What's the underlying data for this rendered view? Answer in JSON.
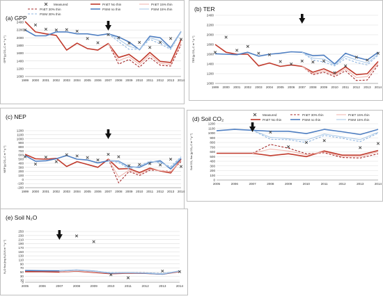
{
  "panels_legend": {
    "measured": "Measured",
    "pnet_no": "PnET No thin",
    "pnet_15": "PnET 15% thin",
    "pnet_30": "PnET 30% thin",
    "psim_no": "PSIM no thin",
    "psim_15": "PSIM 15% thin",
    "psim_30": "PSIM 30% thin",
    "pnet_no_alt": "PnET No thin",
    "psim_no_alt": "PSIM no thin",
    "pnet_30_alt": "PnET 30% thin",
    "pnet_15_alt": "PnET 15% thin",
    "psim_15_alt": "PSIM 15% thin"
  },
  "colors": {
    "measured": "#444444",
    "pnet_no": "#c0392b",
    "pnet_15": "#f0b8b0",
    "pnet_30": "#a52a2a",
    "psim_no": "#4f7fc2",
    "psim_15": "#aecbe8",
    "psim_30": "#8fb5e0",
    "arrow": "#111111"
  },
  "chart_data": [
    {
      "id": "gpp",
      "type": "line",
      "title": "(a) GPP",
      "ylabel": "GPP [g CO₂-C m⁻² y⁻¹]",
      "x": [
        1999,
        2000,
        2001,
        2002,
        2003,
        2004,
        2005,
        2006,
        2007,
        2008,
        2009,
        2010,
        2011,
        2012,
        2013,
        2014
      ],
      "xlim": [
        1999,
        2014
      ],
      "ylim": [
        1000,
        2400
      ],
      "yticks": [
        1000,
        1200,
        1400,
        1600,
        1800,
        2000,
        2200,
        2400
      ],
      "arrow_x": 2007,
      "measured": {
        "x": [
          1999,
          2000,
          2001,
          2002,
          2003,
          2004,
          2005,
          2006,
          2007,
          2008,
          2009,
          2010,
          2011,
          2012,
          2013,
          2014
        ],
        "y": [
          2200,
          2330,
          2220,
          2200,
          2210,
          2170,
          1980,
          1870,
          2080,
          2000,
          1860,
          1880,
          1750,
          1880,
          1980,
          1960
        ]
      },
      "series": [
        {
          "name": "pnet_no",
          "y": [
            2420,
            2150,
            2100,
            2060,
            1680,
            1860,
            1720,
            1680,
            1850,
            1490,
            1570,
            1370,
            1620,
            1390,
            1360,
            1950
          ]
        },
        {
          "name": "pnet_30",
          "y": [
            null,
            null,
            null,
            null,
            null,
            null,
            null,
            null,
            1850,
            1320,
            1440,
            1240,
            1490,
            1290,
            1270,
            1820
          ]
        },
        {
          "name": "pnet_15",
          "y": [
            null,
            null,
            null,
            null,
            null,
            null,
            null,
            null,
            1850,
            1410,
            1510,
            1310,
            1560,
            1340,
            1310,
            1880
          ]
        },
        {
          "name": "psim_no",
          "y": [
            2200,
            2050,
            2050,
            2150,
            2150,
            2100,
            2100,
            2060,
            2100,
            2020,
            1890,
            1690,
            2040,
            2000,
            1740,
            2160
          ]
        },
        {
          "name": "psim_30",
          "y": [
            null,
            null,
            null,
            null,
            null,
            null,
            null,
            null,
            2100,
            1900,
            1700,
            1700,
            1960,
            1840,
            1700,
            2140
          ]
        },
        {
          "name": "psim_15",
          "y": [
            null,
            null,
            null,
            null,
            null,
            null,
            null,
            null,
            2100,
            1960,
            1780,
            1700,
            2000,
            1920,
            1720,
            2150
          ]
        }
      ]
    },
    {
      "id": "ter",
      "type": "line",
      "title": "(b) TER",
      "ylabel": "TER [g CO₂-C m⁻² y⁻¹]",
      "x": [
        1999,
        2000,
        2001,
        2002,
        2003,
        2004,
        2005,
        2006,
        2007,
        2008,
        2009,
        2010,
        2011,
        2012,
        2013,
        2014
      ],
      "xlim": [
        1999,
        2014
      ],
      "ylim": [
        1000,
        2400
      ],
      "yticks": [
        1000,
        1200,
        1400,
        1600,
        1800,
        2000,
        2200,
        2400
      ],
      "arrow_x": 2007,
      "measured": {
        "x": [
          1999,
          2000,
          2001,
          2002,
          2003,
          2004,
          2005,
          2006,
          2007,
          2008,
          2009,
          2010,
          2011,
          2012,
          2013,
          2014
        ],
        "y": [
          1640,
          1950,
          1680,
          1760,
          1620,
          1590,
          1450,
          1400,
          1460,
          1440,
          1460,
          1220,
          1360,
          1540,
          1480,
          1620
        ]
      },
      "series": [
        {
          "name": "pnet_no",
          "y": [
            1800,
            1640,
            1600,
            1600,
            1360,
            1420,
            1350,
            1380,
            1350,
            1230,
            1300,
            1200,
            1340,
            1180,
            1200,
            1450
          ]
        },
        {
          "name": "pnet_30",
          "y": [
            null,
            null,
            null,
            null,
            null,
            null,
            null,
            null,
            1350,
            1180,
            1230,
            1140,
            1260,
            1060,
            1070,
            1380
          ]
        },
        {
          "name": "pnet_15",
          "y": [
            null,
            null,
            null,
            null,
            null,
            null,
            null,
            null,
            1350,
            1200,
            1260,
            1170,
            1300,
            1120,
            1140,
            1410
          ]
        },
        {
          "name": "psim_no",
          "y": [
            1610,
            1600,
            1590,
            1640,
            1560,
            1600,
            1620,
            1650,
            1640,
            1570,
            1580,
            1400,
            1620,
            1540,
            1480,
            1640
          ]
        },
        {
          "name": "psim_30",
          "y": [
            null,
            null,
            null,
            null,
            null,
            null,
            null,
            null,
            1640,
            1480,
            1440,
            1360,
            1510,
            1430,
            1380,
            1580
          ]
        },
        {
          "name": "psim_15",
          "y": [
            null,
            null,
            null,
            null,
            null,
            null,
            null,
            null,
            1640,
            1520,
            1500,
            1380,
            1560,
            1480,
            1420,
            1600
          ]
        }
      ]
    },
    {
      "id": "nep",
      "type": "line",
      "title": "(c) NEP",
      "ylabel": "NEP [g CO₂-C m⁻² y⁻¹]",
      "x": [
        1999,
        2000,
        2001,
        2002,
        2003,
        2004,
        2005,
        2006,
        2007,
        2008,
        2009,
        2010,
        2011,
        2012,
        2013,
        2014
      ],
      "xlim": [
        1999,
        2014
      ],
      "ylim": [
        -200,
        1200
      ],
      "yticks": [
        -200,
        -100,
        0,
        100,
        200,
        300,
        400,
        500,
        600,
        700,
        800,
        900,
        1000,
        1100,
        1200
      ],
      "arrow_x": 2007,
      "measured": {
        "x": [
          1999,
          2000,
          2001,
          2002,
          2003,
          2004,
          2005,
          2006,
          2007,
          2008,
          2009,
          2010,
          2011,
          2012,
          2013,
          2014
        ],
        "y": [
          560,
          380,
          550,
          440,
          610,
          580,
          540,
          480,
          620,
          560,
          340,
          370,
          390,
          360,
          500,
          320
        ]
      },
      "series": [
        {
          "name": "pnet_no",
          "y": [
            620,
            510,
            500,
            520,
            320,
            440,
            370,
            300,
            500,
            260,
            270,
            170,
            280,
            210,
            160,
            500
          ]
        },
        {
          "name": "pnet_30",
          "y": [
            null,
            null,
            null,
            null,
            null,
            null,
            null,
            null,
            500,
            -80,
            200,
            100,
            230,
            220,
            200,
            440
          ]
        },
        {
          "name": "pnet_15",
          "y": [
            null,
            null,
            null,
            null,
            null,
            null,
            null,
            null,
            500,
            60,
            230,
            140,
            250,
            220,
            190,
            470
          ]
        },
        {
          "name": "psim_no",
          "y": [
            590,
            450,
            460,
            510,
            590,
            500,
            480,
            410,
            460,
            450,
            310,
            300,
            420,
            460,
            260,
            520
          ]
        },
        {
          "name": "psim_30",
          "y": [
            null,
            null,
            null,
            null,
            null,
            null,
            null,
            null,
            460,
            420,
            260,
            340,
            450,
            410,
            320,
            560
          ]
        },
        {
          "name": "psim_15",
          "y": [
            null,
            null,
            null,
            null,
            null,
            null,
            null,
            null,
            460,
            440,
            290,
            320,
            440,
            430,
            290,
            540
          ]
        }
      ]
    },
    {
      "id": "co2",
      "type": "line",
      "title": "(d) Soil CO₂",
      "ylabel": "Soil CO₂ flux [g CO₂-C m⁻² y⁻¹]",
      "x": [
        2005,
        2006,
        2007,
        2008,
        2009,
        2010,
        2011,
        2012,
        2013,
        2014
      ],
      "xlim": [
        2005,
        2014
      ],
      "ylim": [
        0,
        1200
      ],
      "yticks": [
        0,
        100,
        200,
        300,
        400,
        500,
        600,
        700,
        800,
        900,
        1000,
        1100,
        1200
      ],
      "arrow_x": 2007,
      "measured": {
        "x": [
          2008,
          2009,
          2010,
          2011,
          2013,
          2014
        ],
        "y": [
          1020,
          710,
          800,
          840,
          690,
          780
        ]
      },
      "series": [
        {
          "name": "pnet_no",
          "y": [
            570,
            570,
            570,
            520,
            560,
            500,
            620,
            530,
            530,
            630
          ]
        },
        {
          "name": "pnet_30",
          "y": [
            null,
            null,
            570,
            760,
            680,
            560,
            580,
            480,
            470,
            560
          ]
        },
        {
          "name": "pnet_15",
          "y": [
            null,
            null,
            570,
            660,
            620,
            540,
            600,
            500,
            500,
            600
          ]
        },
        {
          "name": "psim_no",
          "y": [
            1050,
            1080,
            1060,
            1040,
            1040,
            990,
            1080,
            1030,
            970,
            1080
          ]
        },
        {
          "name": "psim_30",
          "y": [
            null,
            null,
            1060,
            870,
            860,
            800,
            950,
            890,
            820,
            1000
          ]
        },
        {
          "name": "psim_15",
          "y": [
            null,
            null,
            1060,
            910,
            880,
            850,
            980,
            920,
            860,
            1020
          ]
        }
      ]
    },
    {
      "id": "n2o",
      "type": "line",
      "title": "(e) Soil N₂O",
      "ylabel": "N₂O flux [mg N₂O-N m⁻² y⁻¹]",
      "x": [
        2005,
        2006,
        2007,
        2008,
        2009,
        2010,
        2011,
        2012,
        2013,
        2014
      ],
      "xlim": [
        2005,
        2014
      ],
      "ylim": [
        0,
        250
      ],
      "yticks": [
        0,
        10,
        30,
        50,
        70,
        90,
        110,
        130,
        150,
        170,
        190,
        210,
        230,
        250
      ],
      "arrow_x": 2007,
      "measured": {
        "x": [
          2008,
          2009,
          2010,
          2011,
          2013,
          2014
        ],
        "y": [
          228,
          200,
          37,
          22,
          55,
          52
        ]
      },
      "series": [
        {
          "name": "pnet_no",
          "y": [
            52,
            52,
            50,
            55,
            48,
            42,
            45,
            44,
            40,
            52
          ]
        },
        {
          "name": "pnet_30",
          "y": [
            null,
            null,
            50,
            58,
            52,
            47,
            48,
            47,
            42,
            54
          ]
        },
        {
          "name": "pnet_15",
          "y": [
            null,
            null,
            50,
            56,
            50,
            45,
            47,
            45,
            41,
            53
          ]
        },
        {
          "name": "psim_no",
          "y": [
            58,
            57,
            56,
            60,
            55,
            45,
            47,
            45,
            40,
            55
          ]
        },
        {
          "name": "psim_30",
          "y": [
            null,
            null,
            56,
            60,
            54,
            48,
            47,
            47,
            43,
            55
          ]
        },
        {
          "name": "psim_15",
          "y": [
            null,
            null,
            56,
            59,
            55,
            46,
            47,
            46,
            41,
            55
          ]
        }
      ]
    }
  ]
}
